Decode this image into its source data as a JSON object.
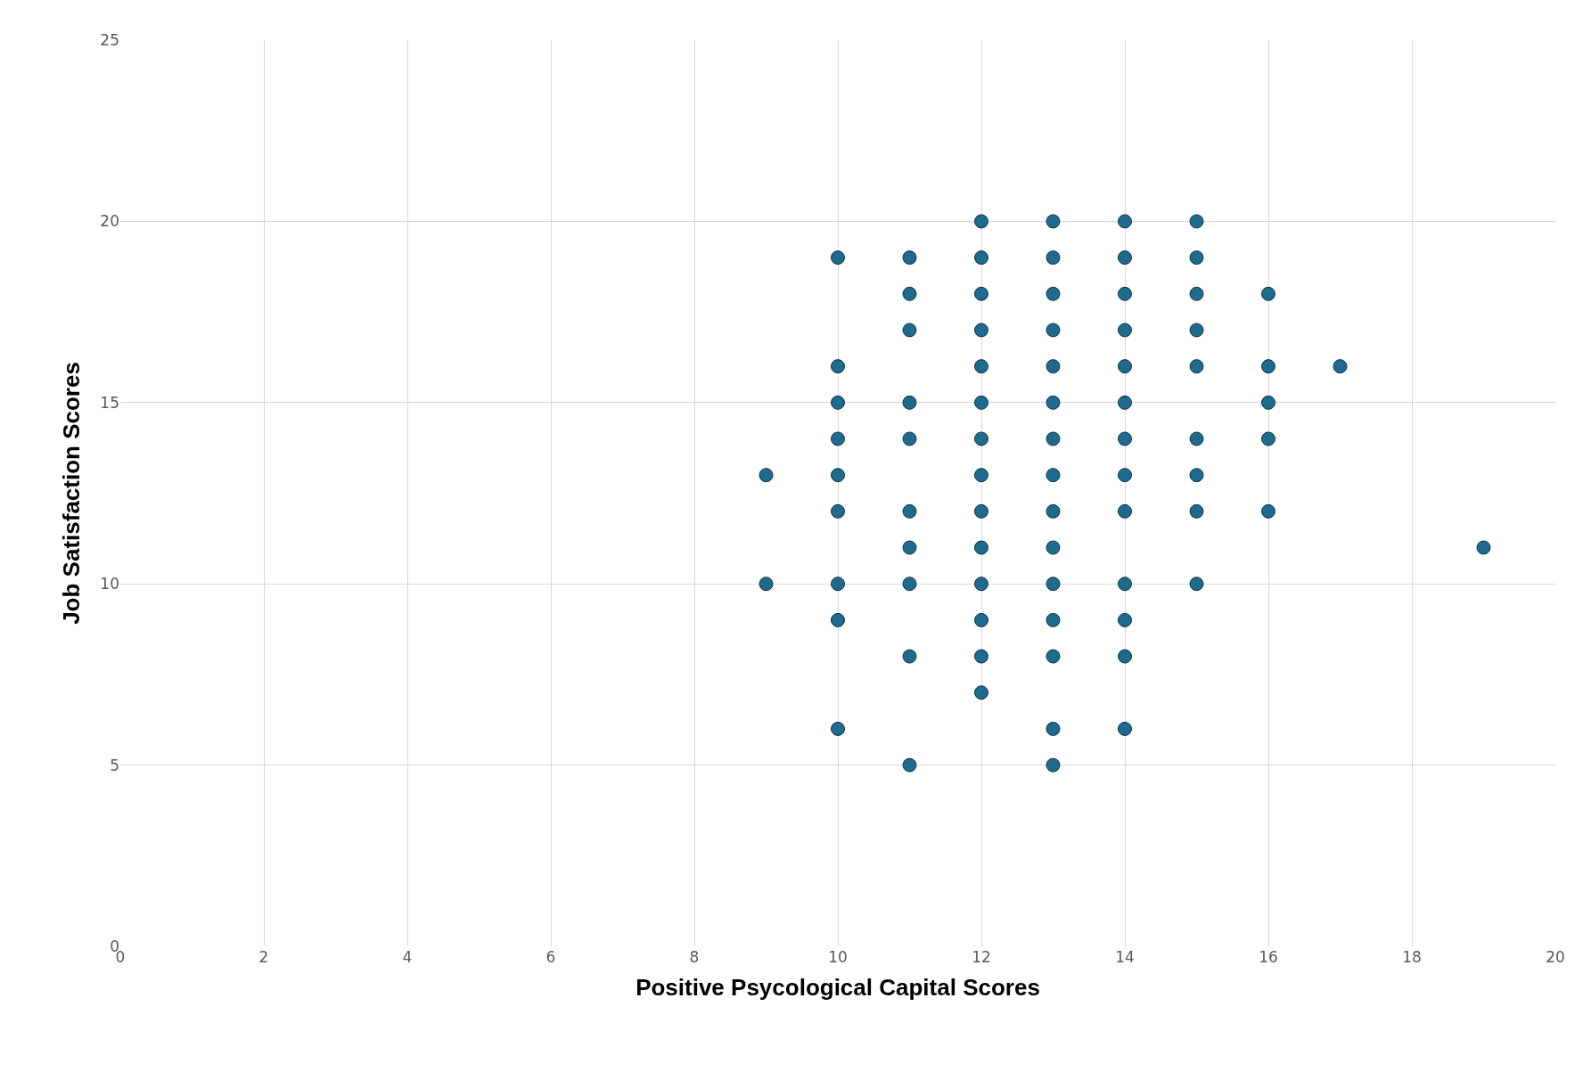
{
  "chart_data": {
    "type": "scatter",
    "xlabel": "Positive Psycological Capital Scores",
    "ylabel": "Job Satisfaction Scores",
    "x": [
      9,
      9,
      10,
      10,
      10,
      10,
      10,
      10,
      10,
      10,
      10,
      11,
      11,
      11,
      11,
      11,
      11,
      11,
      11,
      11,
      11,
      12,
      12,
      12,
      12,
      12,
      12,
      12,
      12,
      12,
      12,
      12,
      12,
      12,
      12,
      13,
      13,
      13,
      13,
      13,
      13,
      13,
      13,
      13,
      13,
      13,
      13,
      13,
      13,
      13,
      14,
      14,
      14,
      14,
      14,
      14,
      14,
      14,
      14,
      14,
      14,
      14,
      14,
      15,
      15,
      15,
      15,
      15,
      15,
      15,
      15,
      15,
      16,
      16,
      16,
      16,
      16,
      17,
      19
    ],
    "series": [
      {
        "color": "#1f6a8f",
        "values": [
          13,
          10,
          19,
          16,
          15,
          14,
          13,
          12,
          10,
          9,
          6,
          19,
          18,
          17,
          15,
          14,
          12,
          11,
          10,
          8,
          5,
          20,
          19,
          18,
          17,
          16,
          15,
          14,
          13,
          12,
          11,
          10,
          9,
          8,
          7,
          20,
          19,
          18,
          17,
          16,
          15,
          14,
          13,
          12,
          11,
          10,
          9,
          8,
          6,
          5,
          20,
          19,
          18,
          17,
          16,
          15,
          14,
          13,
          12,
          10,
          9,
          8,
          6,
          20,
          19,
          18,
          17,
          16,
          14,
          13,
          12,
          10,
          18,
          16,
          15,
          14,
          12,
          16,
          11
        ]
      }
    ],
    "xlim": [
      0,
      20
    ],
    "xticks": [
      0,
      2,
      4,
      6,
      8,
      10,
      12,
      14,
      16,
      18,
      20
    ],
    "ylim": [
      0,
      25
    ],
    "yticks": [
      0,
      5,
      10,
      15,
      20,
      25
    ],
    "grid": true,
    "marker": "circle",
    "legend": false
  }
}
